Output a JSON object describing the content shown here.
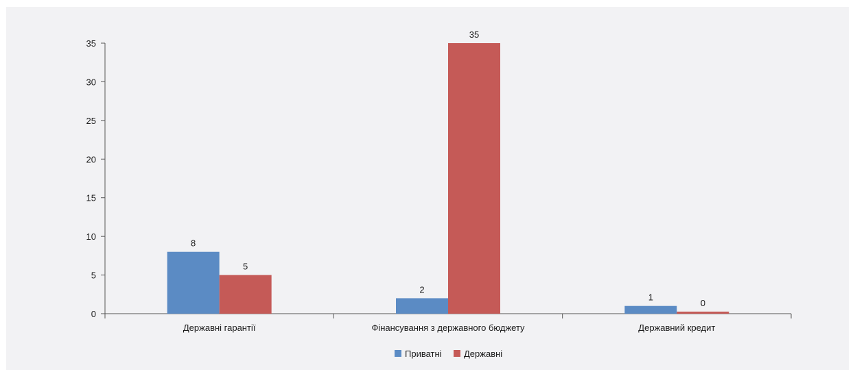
{
  "chart_data": {
    "type": "bar",
    "categories": [
      "Державні гарантії",
      "Фінансування з державного бюджету",
      "Державний кредит"
    ],
    "series": [
      {
        "name": "Приватні",
        "values": [
          8,
          2,
          1
        ],
        "color": "#5b8bc4"
      },
      {
        "name": "Державні",
        "values": [
          5,
          35,
          0
        ],
        "color": "#c55a57"
      }
    ],
    "data_labels": [
      [
        "8",
        "2",
        "1"
      ],
      [
        "5",
        "35",
        "0"
      ]
    ],
    "ylim": [
      0,
      35
    ],
    "yticks": [
      0,
      5,
      10,
      15,
      20,
      25,
      30,
      35
    ],
    "grid": false,
    "legend_position": "bottom",
    "title": "",
    "xlabel": "",
    "ylabel": ""
  }
}
